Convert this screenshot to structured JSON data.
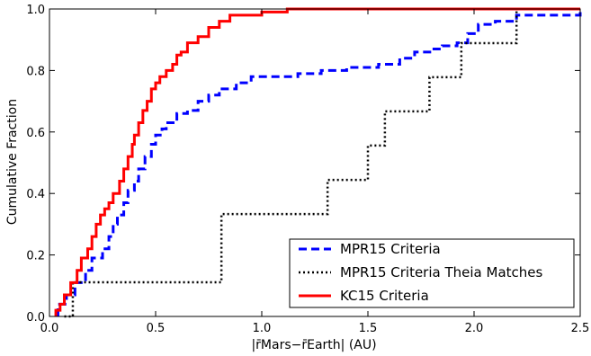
{
  "chart_data": {
    "type": "line",
    "title": "",
    "xlabel": "|r̄Mars−r̄Earth| (AU)",
    "ylabel": "Cumulative Fraction",
    "xlim": [
      0.0,
      2.5
    ],
    "ylim": [
      0.0,
      1.0
    ],
    "xticks": [
      "0.0",
      "0.5",
      "1.0",
      "1.5",
      "2.0",
      "2.5"
    ],
    "yticks": [
      "0.0",
      "0.2",
      "0.4",
      "0.6",
      "0.8",
      "1.0"
    ],
    "grid": false,
    "legend_position": "lower-right",
    "series": [
      {
        "name": "MPR15 Criteria",
        "color": "#0000ff",
        "style": "dashed",
        "x": [
          0.04,
          0.08,
          0.12,
          0.17,
          0.2,
          0.25,
          0.28,
          0.3,
          0.32,
          0.35,
          0.37,
          0.4,
          0.42,
          0.45,
          0.48,
          0.5,
          0.53,
          0.55,
          0.6,
          0.65,
          0.7,
          0.75,
          0.8,
          0.88,
          0.95,
          1.05,
          1.17,
          1.28,
          1.4,
          1.55,
          1.65,
          1.72,
          1.8,
          1.85,
          1.92,
          1.97,
          2.02,
          2.1,
          2.2,
          2.5
        ],
        "y": [
          0.04,
          0.07,
          0.11,
          0.15,
          0.19,
          0.22,
          0.26,
          0.3,
          0.33,
          0.37,
          0.41,
          0.44,
          0.48,
          0.52,
          0.56,
          0.59,
          0.61,
          0.63,
          0.66,
          0.67,
          0.7,
          0.72,
          0.74,
          0.76,
          0.78,
          0.78,
          0.79,
          0.8,
          0.81,
          0.82,
          0.84,
          0.86,
          0.87,
          0.88,
          0.89,
          0.92,
          0.95,
          0.96,
          0.98,
          1.0
        ]
      },
      {
        "name": "MPR15 Criteria Theia Matches",
        "color": "#000000",
        "style": "dotted",
        "x": [
          0.07,
          0.11,
          0.81,
          1.31,
          1.5,
          1.58,
          1.79,
          1.94,
          2.2,
          2.5
        ],
        "y": [
          0.0,
          0.111,
          0.333,
          0.444,
          0.556,
          0.667,
          0.778,
          0.889,
          1.0,
          1.0
        ]
      },
      {
        "name": "KC15 Criteria",
        "color": "#ff0000",
        "style": "solid",
        "x": [
          0.03,
          0.05,
          0.07,
          0.1,
          0.13,
          0.15,
          0.18,
          0.2,
          0.22,
          0.24,
          0.26,
          0.28,
          0.3,
          0.33,
          0.35,
          0.37,
          0.39,
          0.4,
          0.42,
          0.44,
          0.46,
          0.48,
          0.5,
          0.52,
          0.55,
          0.58,
          0.6,
          0.62,
          0.65,
          0.7,
          0.75,
          0.8,
          0.85,
          0.9,
          1.0,
          1.12,
          2.5
        ],
        "y": [
          0.02,
          0.04,
          0.07,
          0.11,
          0.15,
          0.19,
          0.22,
          0.26,
          0.3,
          0.33,
          0.35,
          0.37,
          0.4,
          0.44,
          0.48,
          0.52,
          0.56,
          0.59,
          0.63,
          0.67,
          0.7,
          0.74,
          0.76,
          0.78,
          0.8,
          0.82,
          0.85,
          0.86,
          0.89,
          0.91,
          0.94,
          0.96,
          0.98,
          0.98,
          0.99,
          1.0,
          1.0
        ]
      }
    ]
  }
}
